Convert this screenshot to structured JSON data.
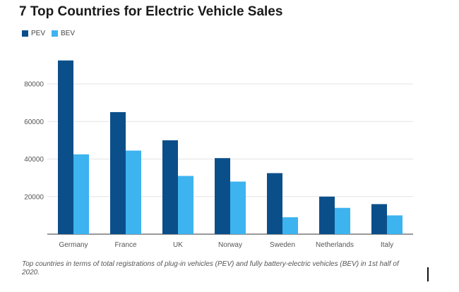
{
  "chart_data": {
    "type": "bar",
    "title": "7 Top Countries for Electric Vehicle Sales",
    "categories": [
      "Germany",
      "France",
      "UK",
      "Norway",
      "Sweden",
      "Netherlands",
      "Italy"
    ],
    "series": [
      {
        "name": "PEV",
        "color": "#0b4f8a",
        "values": [
          92500,
          65000,
          50000,
          40500,
          32500,
          20000,
          16000
        ]
      },
      {
        "name": "BEV",
        "color": "#3db3f0",
        "values": [
          42500,
          44500,
          31000,
          28000,
          9000,
          14000,
          10000
        ]
      }
    ],
    "yticks": [
      20000,
      40000,
      60000,
      80000
    ],
    "ylim": [
      0,
      100000
    ],
    "grid": true,
    "legend_position": "top-left",
    "caption": "Top countries in terms of total registrations of plug-in vehicles (PEV) and fully battery-electric vehicles (BEV) in 1st half of 2020."
  }
}
